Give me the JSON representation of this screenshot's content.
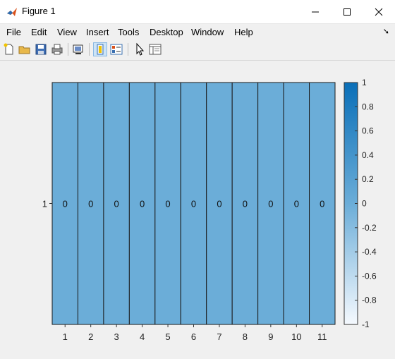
{
  "window": {
    "title": "Figure 1"
  },
  "menu": [
    "File",
    "Edit",
    "View",
    "Insert",
    "Tools",
    "Desktop",
    "Window",
    "Help"
  ],
  "toolbar": [
    "new-figure-icon",
    "open-file-icon",
    "save-icon",
    "print-icon",
    "link-plot-icon",
    "hide-plot-tools-icon",
    "show-plot-tools-icon",
    "edit-plot-icon",
    "open-property-inspector-icon"
  ],
  "chart_data": {
    "type": "heatmap",
    "rows": [
      "1"
    ],
    "columns": [
      "1",
      "2",
      "3",
      "4",
      "5",
      "6",
      "7",
      "8",
      "9",
      "10",
      "11"
    ],
    "values": [
      [
        0,
        0,
        0,
        0,
        0,
        0,
        0,
        0,
        0,
        0,
        0
      ]
    ],
    "colorbar": {
      "limits": [
        -1,
        1
      ],
      "ticks": [
        "1",
        "0.8",
        "0.6",
        "0.4",
        "0.2",
        "0",
        "-0.2",
        "-0.4",
        "-0.6",
        "-0.8",
        "-1"
      ],
      "colors": {
        "low": "#f5f9fe",
        "mid": "#6badd8",
        "high": "#0a6fb8"
      }
    },
    "cell_color": "#6badd8"
  }
}
